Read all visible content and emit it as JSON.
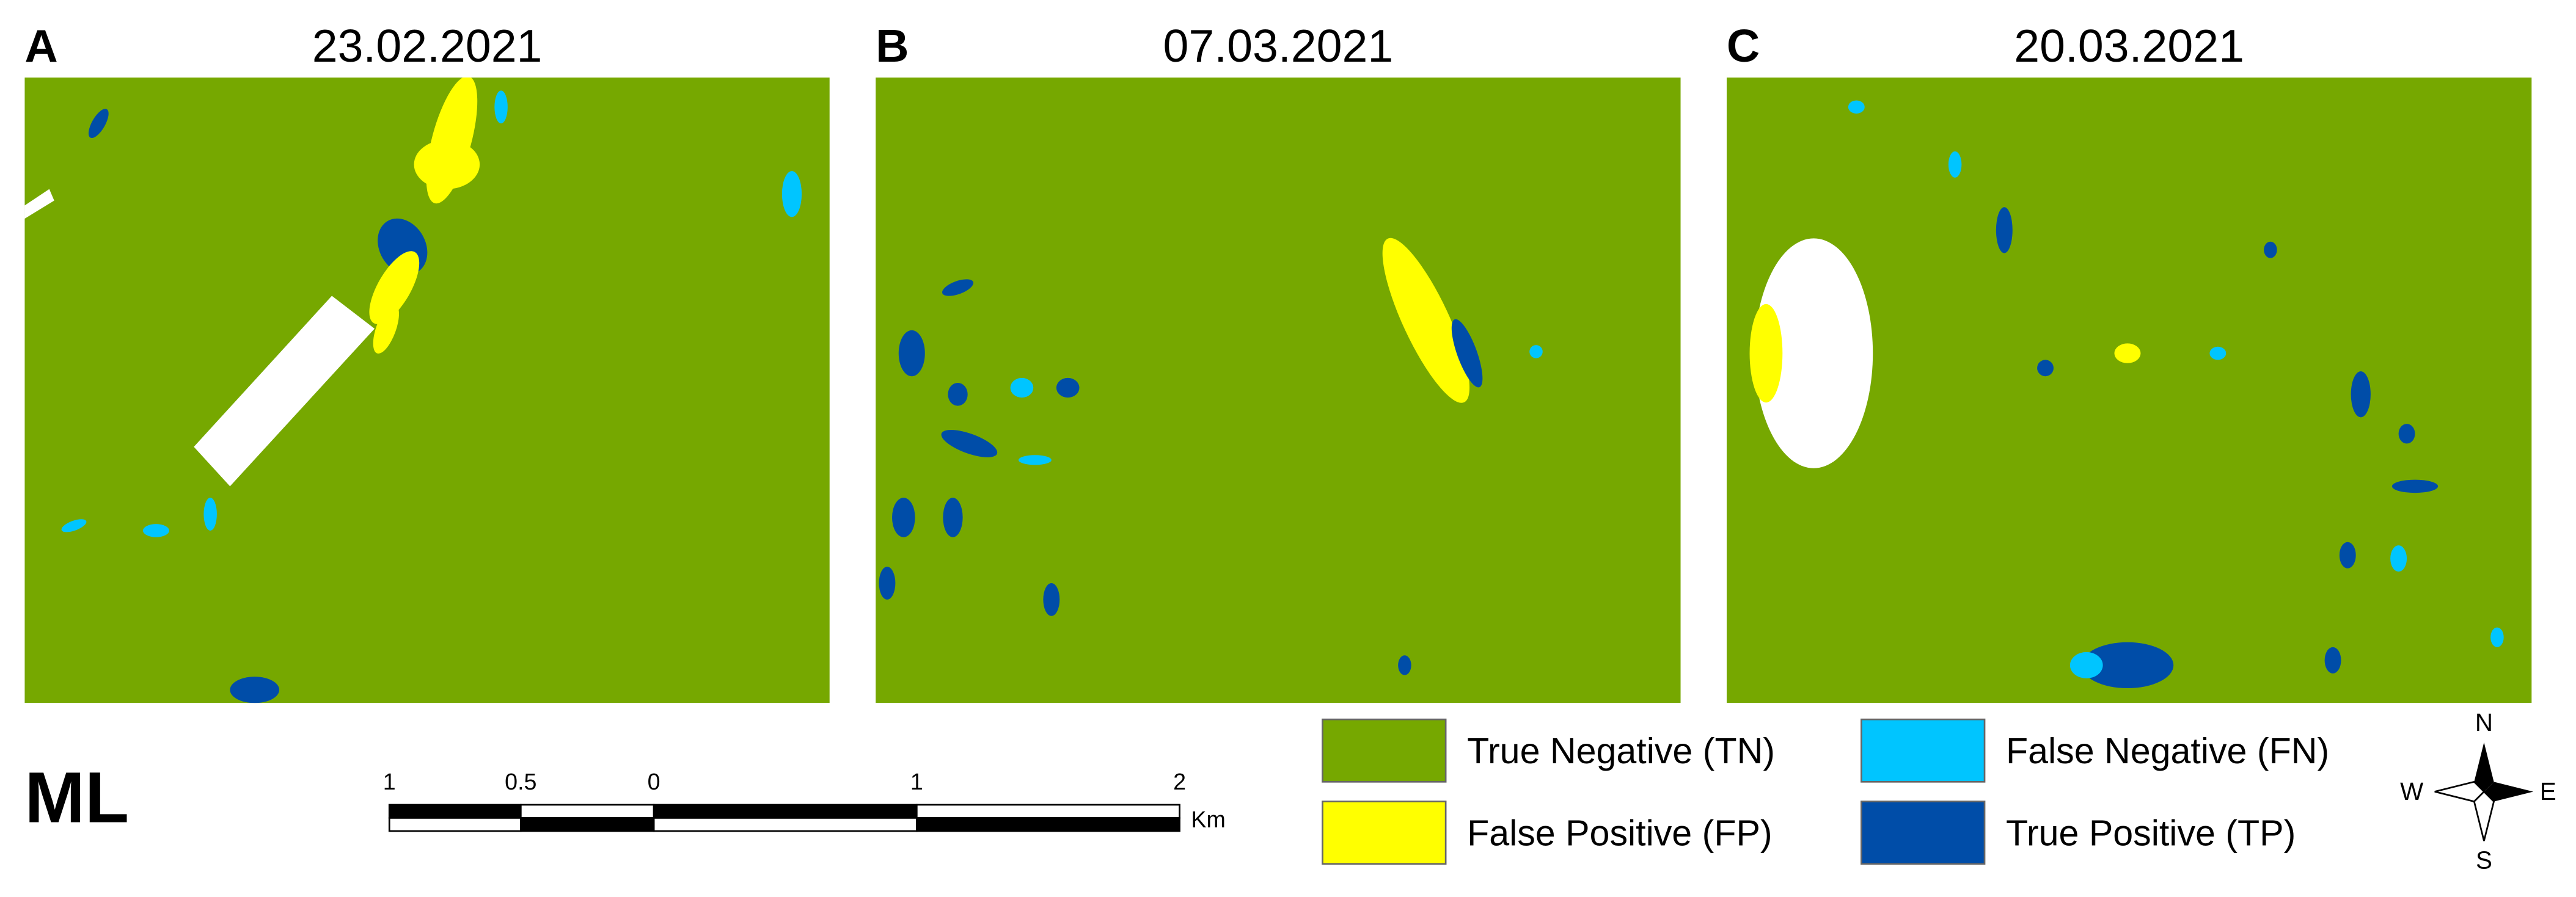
{
  "panels": [
    {
      "letter": "A",
      "date": "23.02.2021"
    },
    {
      "letter": "B",
      "date": "07.03.2021"
    },
    {
      "letter": "C",
      "date": "20.03.2021"
    }
  ],
  "legend": [
    {
      "label": "True Negative (TN)",
      "color": "#76a800"
    },
    {
      "label": "False Positive (FP)",
      "color": "#ffff00"
    },
    {
      "label": "False Negative (FN)",
      "color": "#00c5ff"
    },
    {
      "label": "True Positive (TP)",
      "color": "#004da8"
    }
  ],
  "method": "ML",
  "scale_bar": {
    "labels": [
      "1",
      "0.5",
      "0",
      "1",
      "2"
    ],
    "unit": "Km"
  },
  "compass": {
    "n": "N",
    "s": "S",
    "w": "W",
    "e": "E"
  }
}
